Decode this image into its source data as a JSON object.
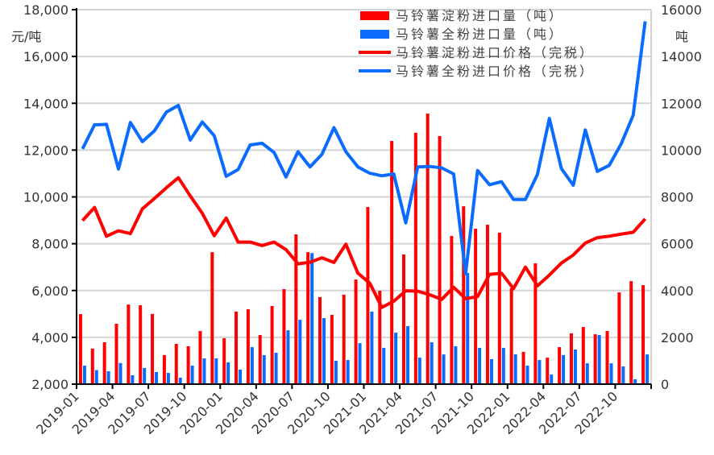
{
  "chart_data": {
    "type": "bar+line",
    "left_axis": {
      "label": "元/吨",
      "ylim": [
        2000,
        18000
      ],
      "ticks": [
        "2,000",
        "4,000",
        "6,000",
        "8,000",
        "10,000",
        "12,000",
        "14,000",
        "16,000",
        "18,000"
      ]
    },
    "right_axis": {
      "label": "吨",
      "ylim": [
        0,
        16000
      ],
      "ticks": [
        "0",
        "2000",
        "4000",
        "6000",
        "8000",
        "10000",
        "12000",
        "14000",
        "16000"
      ]
    },
    "grid": true,
    "legend_position": "top-right",
    "categories": [
      "2019-01",
      "2019-02",
      "2019-03",
      "2019-04",
      "2019-05",
      "2019-06",
      "2019-07",
      "2019-08",
      "2019-09",
      "2019-10",
      "2019-11",
      "2019-12",
      "2020-01",
      "2020-02",
      "2020-03",
      "2020-04",
      "2020-05",
      "2020-06",
      "2020-07",
      "2020-08",
      "2020-09",
      "2020-10",
      "2020-11",
      "2020-12",
      "2021-01",
      "2021-02",
      "2021-03",
      "2021-04",
      "2021-05",
      "2021-06",
      "2021-07",
      "2021-08",
      "2021-09",
      "2021-10",
      "2021-11",
      "2021-12",
      "2022-01",
      "2022-02",
      "2022-03",
      "2022-04",
      "2022-05",
      "2022-06",
      "2022-07",
      "2022-08",
      "2022-09",
      "2022-10",
      "2022-11",
      "2022-12"
    ],
    "x_tick_labels": [
      "2019-01",
      "2019-04",
      "2019-07",
      "2019-10",
      "2020-01",
      "2020-04",
      "2020-07",
      "2020-10",
      "2021-01",
      "2021-04",
      "2021-07",
      "2021-10",
      "2022-01",
      "2022-04",
      "2022-07",
      "2022-10"
    ],
    "series": [
      {
        "name": "马铃薯淀粉进口量（吨）",
        "type": "bar",
        "axis": "right",
        "color": "#ff0000",
        "values": [
          2990,
          1520,
          1790,
          2580,
          3400,
          3370,
          3000,
          1240,
          1720,
          1620,
          2270,
          5640,
          1960,
          3100,
          3200,
          2100,
          3340,
          4060,
          6400,
          5640,
          3720,
          2960,
          3820,
          4470,
          7570,
          3990,
          10390,
          5540,
          10740,
          11560,
          10600,
          6330,
          7600,
          6640,
          6810,
          6470,
          4100,
          1380,
          5160,
          1130,
          1580,
          2170,
          2440,
          2130,
          2270,
          3920,
          4400,
          4230
        ]
      },
      {
        "name": "马铃薯全粉进口量（吨）",
        "type": "bar",
        "axis": "right",
        "color": "#0a6cff",
        "values": [
          790,
          600,
          550,
          900,
          380,
          690,
          520,
          480,
          275,
          790,
          1100,
          1100,
          930,
          620,
          1580,
          1240,
          1340,
          2300,
          2750,
          5600,
          2820,
          1000,
          1030,
          1750,
          3100,
          1550,
          2200,
          2480,
          1130,
          1790,
          1270,
          1620,
          4750,
          1550,
          1070,
          1550,
          1270,
          790,
          1030,
          410,
          1240,
          1480,
          890,
          2100,
          890,
          760,
          210,
          1270
        ]
      },
      {
        "name": "马铃薯淀粉进口价格（完税）",
        "type": "line",
        "axis": "left",
        "color": "#ff0000",
        "values": [
          8990,
          9550,
          8320,
          8550,
          8430,
          9490,
          9930,
          10390,
          10820,
          10040,
          9300,
          8340,
          9100,
          8070,
          8070,
          7920,
          8070,
          7750,
          7140,
          7210,
          7400,
          7200,
          7980,
          6740,
          6310,
          5280,
          5540,
          5990,
          5970,
          5820,
          5620,
          6140,
          5650,
          5740,
          6690,
          6740,
          6080,
          7000,
          6200,
          6660,
          7170,
          7520,
          8030,
          8260,
          8320,
          8410,
          8490,
          9060
        ]
      },
      {
        "name": "马铃薯全粉进口价格（完税）",
        "type": "line",
        "axis": "left",
        "color": "#0a6cff",
        "values": [
          12050,
          13080,
          13100,
          11190,
          13180,
          12360,
          12820,
          13620,
          13910,
          12430,
          13200,
          12620,
          10880,
          11170,
          12220,
          12290,
          11900,
          10850,
          11930,
          11280,
          11820,
          12960,
          11930,
          11280,
          11010,
          10900,
          10980,
          8890,
          11280,
          11300,
          11240,
          10980,
          6720,
          11130,
          10520,
          10650,
          9890,
          9890,
          10960,
          13350,
          11210,
          10500,
          12860,
          11090,
          11350,
          12270,
          13490,
          17500
        ]
      }
    ]
  }
}
